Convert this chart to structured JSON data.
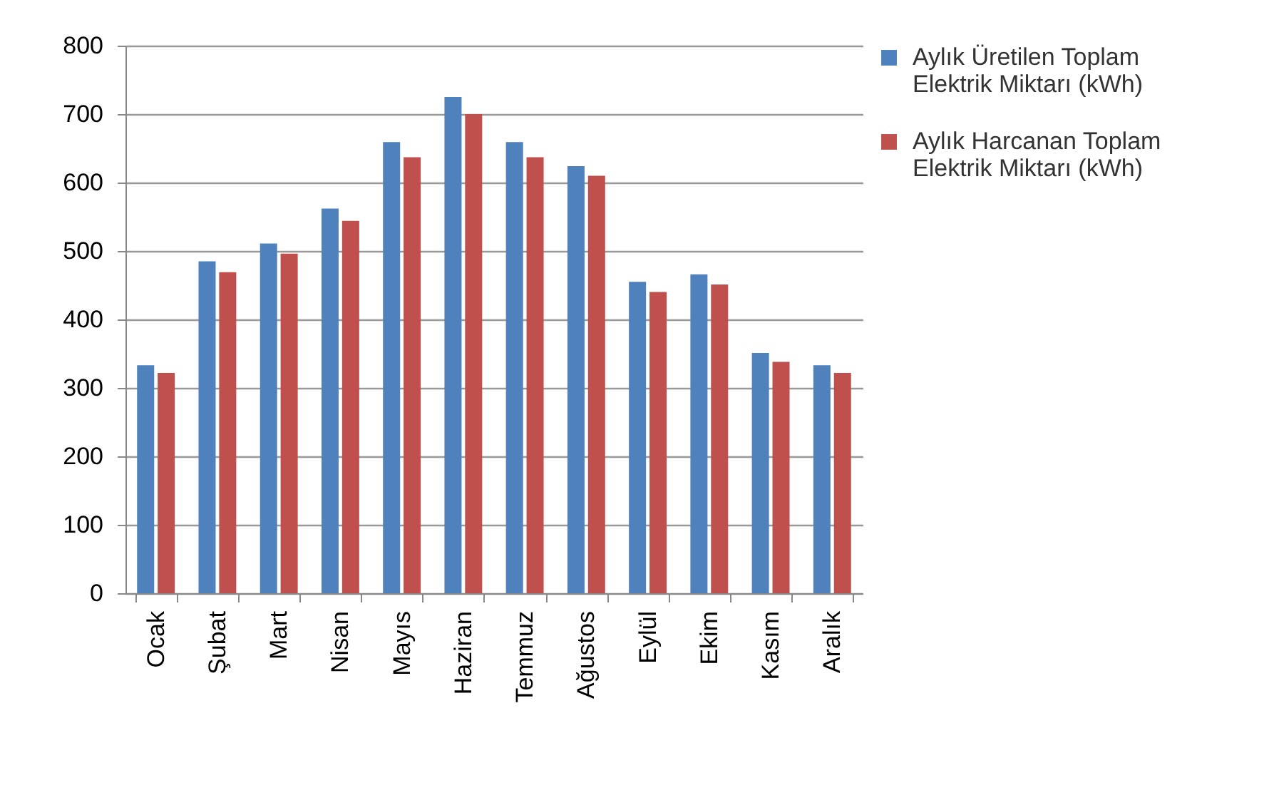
{
  "chart_data": {
    "type": "bar",
    "categories": [
      "Ocak",
      "Şubat",
      "Mart",
      "Nisan",
      "Mayıs",
      "Haziran",
      "Temmuz",
      "Ağustos",
      "Eylül",
      "Ekim",
      "Kasım",
      "Aralık"
    ],
    "series": [
      {
        "name": "Aylık Üretilen Toplam Elektrik Miktarı (kWh)",
        "color": "#4f81bd",
        "values": [
          333,
          485,
          511,
          562,
          659,
          725,
          659,
          624,
          455,
          466,
          351,
          333
        ]
      },
      {
        "name": "Aylık Harcanan Toplam Elektrik Miktarı (kWh)",
        "color": "#c0504d",
        "values": [
          322,
          469,
          496,
          544,
          637,
          700,
          637,
          610,
          440,
          451,
          338,
          322
        ]
      }
    ],
    "ylim": [
      0,
      800
    ],
    "yticks": [
      0,
      100,
      200,
      300,
      400,
      500,
      600,
      700,
      800
    ],
    "grid": "y",
    "legend": "right"
  }
}
